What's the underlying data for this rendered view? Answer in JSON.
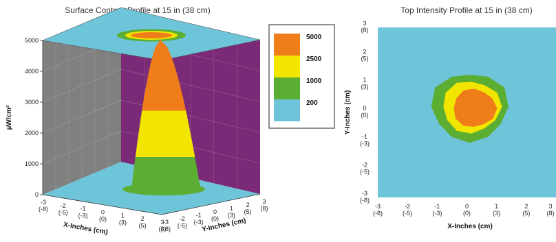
{
  "colors": {
    "level_200": "#6ec4d8",
    "level_1000": "#5cae32",
    "level_2500": "#f2e500",
    "level_5000": "#ef7d1a",
    "left_wall": "#808080",
    "right_wall": "#7b2a78"
  },
  "chart_data": [
    {
      "type": "area",
      "title": "Surface Contour Profile at 15 in (38 cm)",
      "ylabel": "µW/cm²",
      "xlabel": "X-Inches (cm)",
      "zlabel": "Y-Inches (cm)",
      "ylim": [
        0,
        5000
      ],
      "y_ticks": [
        "0",
        "1000",
        "2000",
        "3000",
        "4000",
        "5000"
      ],
      "x_ticks": [
        {
          "inches": "-3",
          "cm": "(-8)"
        },
        {
          "inches": "-2",
          "cm": "(-5)"
        },
        {
          "inches": "-1",
          "cm": "(-3)"
        },
        {
          "inches": "0",
          "cm": "(0)"
        },
        {
          "inches": "1",
          "cm": "(3)"
        },
        {
          "inches": "2",
          "cm": "(5)"
        },
        {
          "inches": "3",
          "cm": "(8)"
        }
      ],
      "z_ticks": [
        {
          "inches": "-3",
          "cm": "(-8)"
        },
        {
          "inches": "-2",
          "cm": "(-5)"
        },
        {
          "inches": "-1",
          "cm": "(-3)"
        },
        {
          "inches": "0",
          "cm": "(0)"
        },
        {
          "inches": "1",
          "cm": "(3)"
        },
        {
          "inches": "2",
          "cm": "(5)"
        },
        {
          "inches": "3",
          "cm": "(8)"
        }
      ],
      "legend": [
        {
          "label": "5000",
          "color": "#ef7d1a"
        },
        {
          "label": "2500",
          "color": "#f2e500"
        },
        {
          "label": "1000",
          "color": "#5cae32"
        },
        {
          "label": "200",
          "color": "#6ec4d8"
        }
      ],
      "peak": 4800
    },
    {
      "type": "heatmap",
      "title": "Top Intensity Profile at 15 in (38 cm)",
      "xlabel": "X-Inches (cm)",
      "ylabel": "Y-Inches (cm)",
      "xlim": [
        -3,
        3
      ],
      "ylim": [
        -3,
        3
      ],
      "x_ticks": [
        {
          "inches": "-3",
          "cm": "(-8)"
        },
        {
          "inches": "-2",
          "cm": "(-5)"
        },
        {
          "inches": "-1",
          "cm": "(-3)"
        },
        {
          "inches": "0",
          "cm": "(0)"
        },
        {
          "inches": "1",
          "cm": "(3)"
        },
        {
          "inches": "2",
          "cm": "(5)"
        },
        {
          "inches": "3",
          "cm": "(8)"
        }
      ],
      "y_ticks": [
        {
          "inches": "3",
          "cm": "(8)"
        },
        {
          "inches": "2",
          "cm": "(5)"
        },
        {
          "inches": "1",
          "cm": "(3)"
        },
        {
          "inches": "0",
          "cm": "(0)"
        },
        {
          "inches": "-1",
          "cm": "(-3)"
        },
        {
          "inches": "-2",
          "cm": "(-5)"
        },
        {
          "inches": "-3",
          "cm": "(-8)"
        }
      ],
      "contours": [
        {
          "level": 200,
          "color": "#6ec4d8"
        },
        {
          "level": 1000,
          "color": "#5cae32",
          "center": [
            0.1,
            0.2
          ],
          "radius": 1.25
        },
        {
          "level": 2500,
          "color": "#f2e500",
          "center": [
            0.15,
            0.2
          ],
          "radius": 0.95
        },
        {
          "level": 5000,
          "color": "#ef7d1a",
          "center": [
            0.25,
            0.15
          ],
          "radius": 0.7
        }
      ]
    }
  ]
}
